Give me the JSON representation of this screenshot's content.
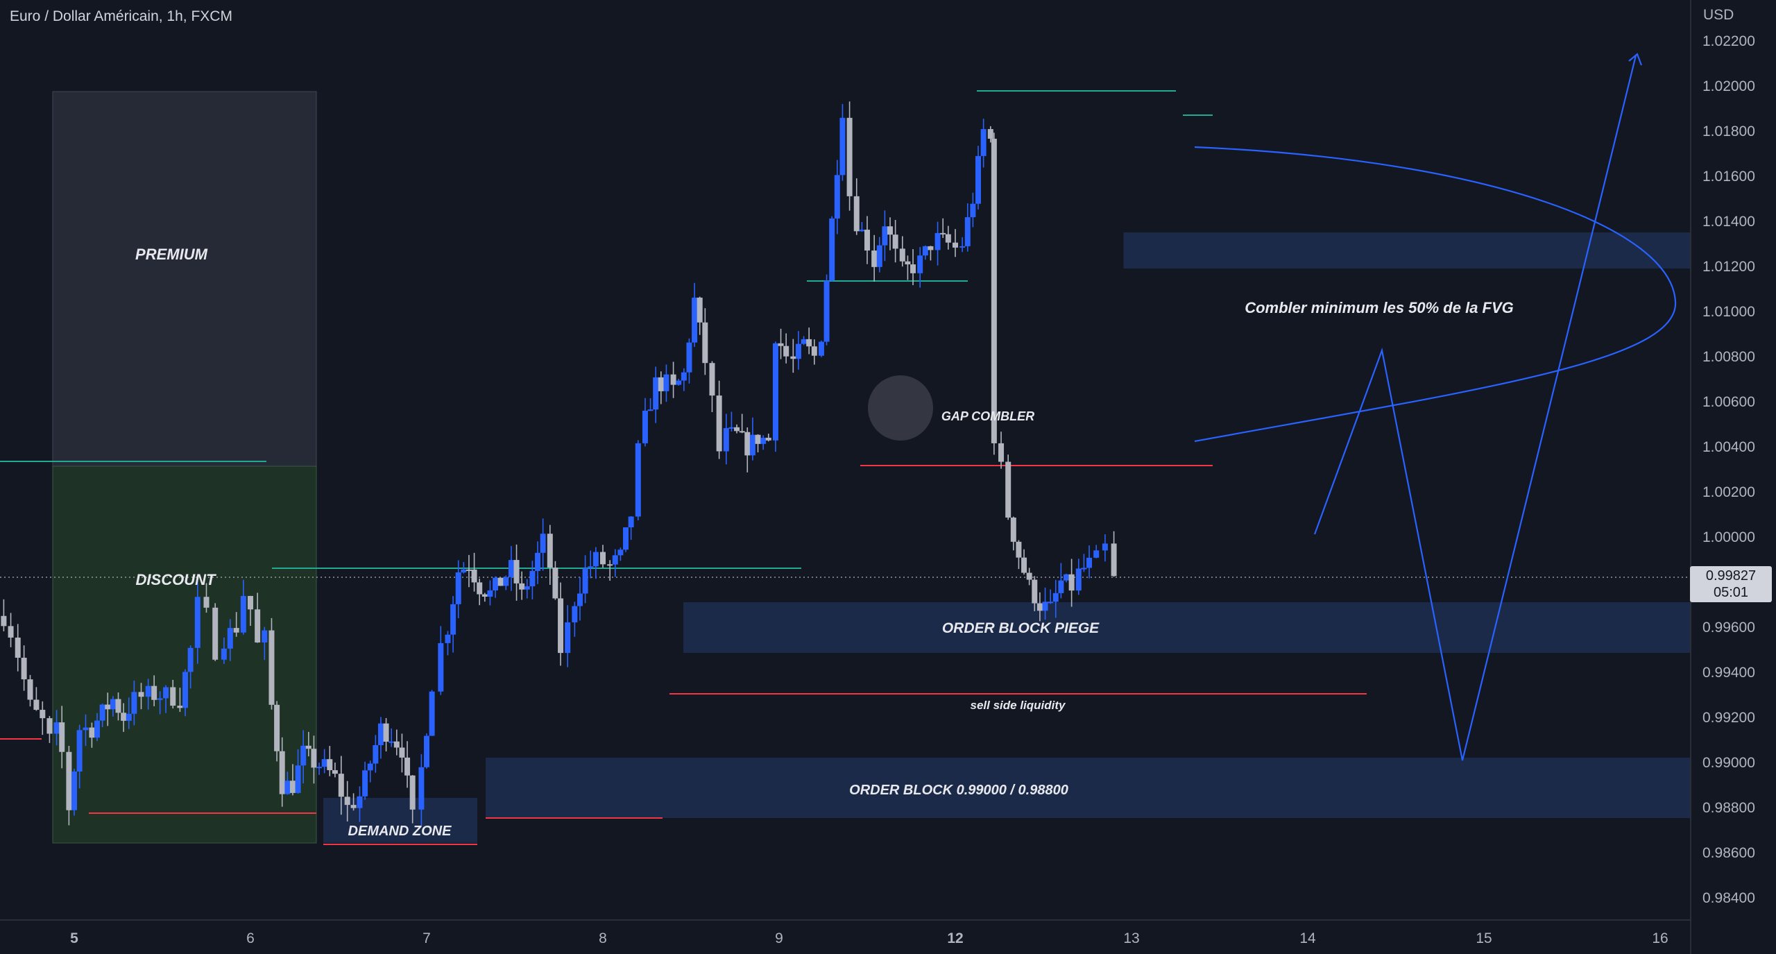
{
  "header": {
    "symbol_title": "Euro / Dollar Américain, 1h, FXCM"
  },
  "price_axis": {
    "currency": "USD",
    "ticks": [
      "1.02200",
      "1.02000",
      "1.01800",
      "1.01600",
      "1.01400",
      "1.01200",
      "1.01000",
      "1.00800",
      "1.00600",
      "1.00400",
      "1.00200",
      "1.00000",
      "0.99800",
      "0.99600",
      "0.99400",
      "0.99200",
      "0.99000",
      "0.98800",
      "0.98600",
      "0.98400"
    ],
    "current_price": "0.99827",
    "countdown": "05:01"
  },
  "chart_data": {
    "type": "candlestick",
    "x_ticks": [
      {
        "label": "5",
        "bold": true,
        "day": 5
      },
      {
        "label": "6",
        "bold": false,
        "day": 6
      },
      {
        "label": "7",
        "bold": false,
        "day": 7
      },
      {
        "label": "8",
        "bold": false,
        "day": 8
      },
      {
        "label": "9",
        "bold": false,
        "day": 9
      },
      {
        "label": "12",
        "bold": true,
        "day": 10
      },
      {
        "label": "13",
        "bold": false,
        "day": 11
      },
      {
        "label": "14",
        "bold": false,
        "day": 12
      },
      {
        "label": "15",
        "bold": false,
        "day": 13
      },
      {
        "label": "16",
        "bold": false,
        "day": 14
      }
    ],
    "ylim": [
      0.983,
      1.0238
    ],
    "xlim": [
      4.58,
      14.2
    ],
    "colors": {
      "up": "#2962ff",
      "down": "#b2b5be",
      "background": "#131722"
    },
    "path_points": [
      [
        4.6,
        0.9965
      ],
      [
        4.64,
        0.9958
      ],
      [
        4.68,
        0.9948
      ],
      [
        4.75,
        0.9925
      ],
      [
        4.82,
        0.9918
      ],
      [
        4.86,
        0.991
      ],
      [
        4.9,
        0.9914
      ],
      [
        4.93,
        0.9904
      ],
      [
        4.97,
        0.988
      ],
      [
        5.03,
        0.9915
      ],
      [
        5.1,
        0.9915
      ],
      [
        5.16,
        0.9922
      ],
      [
        5.22,
        0.9928
      ],
      [
        5.28,
        0.992
      ],
      [
        5.34,
        0.9928
      ],
      [
        5.42,
        0.993
      ],
      [
        5.52,
        0.993
      ],
      [
        5.6,
        0.9928
      ],
      [
        5.66,
        0.995
      ],
      [
        5.7,
        0.997
      ],
      [
        5.75,
        0.9965
      ],
      [
        5.8,
        0.995
      ],
      [
        5.85,
        0.9955
      ],
      [
        5.92,
        0.996
      ],
      [
        5.96,
        0.9975
      ],
      [
        6.0,
        0.9968
      ],
      [
        6.04,
        0.9952
      ],
      [
        6.08,
        0.9955
      ],
      [
        6.12,
        0.9925
      ],
      [
        6.18,
        0.989
      ],
      [
        6.24,
        0.989
      ],
      [
        6.3,
        0.9904
      ],
      [
        6.36,
        0.99
      ],
      [
        6.42,
        0.9898
      ],
      [
        6.48,
        0.9893
      ],
      [
        6.55,
        0.988
      ],
      [
        6.62,
        0.9885
      ],
      [
        6.68,
        0.99
      ],
      [
        6.74,
        0.9915
      ],
      [
        6.8,
        0.9912
      ],
      [
        6.86,
        0.9906
      ],
      [
        6.92,
        0.9875
      ],
      [
        6.97,
        0.9897
      ],
      [
        7.03,
        0.9935
      ],
      [
        7.08,
        0.9952
      ],
      [
        7.12,
        0.996
      ],
      [
        7.18,
        0.9985
      ],
      [
        7.24,
        0.9988
      ],
      [
        7.3,
        0.9978
      ],
      [
        7.36,
        0.9975
      ],
      [
        7.42,
        0.998
      ],
      [
        7.48,
        0.9986
      ],
      [
        7.54,
        0.9974
      ],
      [
        7.6,
        0.9985
      ],
      [
        7.66,
        0.9998
      ],
      [
        7.7,
        0.9987
      ],
      [
        7.76,
        0.995
      ],
      [
        7.8,
        0.996
      ],
      [
        7.84,
        0.9972
      ],
      [
        7.9,
        0.9985
      ],
      [
        7.96,
        0.999
      ],
      [
        8.04,
        0.9987
      ],
      [
        8.1,
        0.9991
      ],
      [
        8.16,
        1.001
      ],
      [
        8.2,
        1.0038
      ],
      [
        8.24,
        1.0052
      ],
      [
        8.3,
        1.0068
      ],
      [
        8.36,
        1.0068
      ],
      [
        8.4,
        1.0065
      ],
      [
        8.46,
        1.0072
      ],
      [
        8.52,
        1.0105
      ],
      [
        8.58,
        1.0078
      ],
      [
        8.62,
        1.006
      ],
      [
        8.66,
        1.0038
      ],
      [
        8.7,
        1.0045
      ],
      [
        8.76,
        1.0045
      ],
      [
        8.82,
        1.004
      ],
      [
        8.88,
        1.0044
      ],
      [
        8.94,
        1.0043
      ],
      [
        8.98,
        1.009
      ],
      [
        9.04,
        1.008
      ],
      [
        9.08,
        1.0078
      ],
      [
        9.14,
        1.0085
      ],
      [
        9.2,
        1.008
      ],
      [
        9.24,
        1.009
      ],
      [
        9.3,
        1.014
      ],
      [
        9.36,
        1.019
      ],
      [
        9.4,
        1.0152
      ],
      [
        9.44,
        1.014
      ],
      [
        9.5,
        1.013
      ],
      [
        9.54,
        1.0122
      ],
      [
        9.6,
        1.014
      ],
      [
        9.66,
        1.0125
      ],
      [
        9.7,
        1.0118
      ],
      [
        9.76,
        1.012
      ],
      [
        9.8,
        1.0122
      ],
      [
        9.86,
        1.013
      ],
      [
        9.9,
        1.0132
      ],
      [
        9.96,
        1.013
      ],
      [
        10.0,
        1.0128
      ],
      [
        10.04,
        1.013
      ],
      [
        10.1,
        1.015
      ],
      [
        10.16,
        1.018
      ],
      [
        10.2,
        1.0176
      ],
      [
        10.22,
        1.0045
      ],
      [
        10.26,
        1.003
      ],
      [
        10.3,
        1.001
      ],
      [
        10.36,
        0.9992
      ],
      [
        10.42,
        0.9978
      ],
      [
        10.48,
        0.997
      ],
      [
        10.54,
        0.9968
      ],
      [
        10.6,
        0.998
      ],
      [
        10.66,
        0.9978
      ],
      [
        10.7,
        0.9984
      ],
      [
        10.76,
        0.9988
      ],
      [
        10.8,
        0.999
      ],
      [
        10.85,
        0.9995
      ],
      [
        10.9,
        0.9983
      ]
    ],
    "annotations": {
      "premium": "PREMIUM",
      "discount": "DISCOUNT",
      "demand_zone": "DEMAND ZONE",
      "gap_combler": "GAP COMBLER",
      "fvg_note": "Combler minimum les 50% de la FVG",
      "order_block_piege": "ORDER BLOCK PIEGE",
      "sell_side_liquidity": "sell side liquidity",
      "order_block_main": "ORDER BLOCK 0.99000 / 0.98800"
    }
  }
}
